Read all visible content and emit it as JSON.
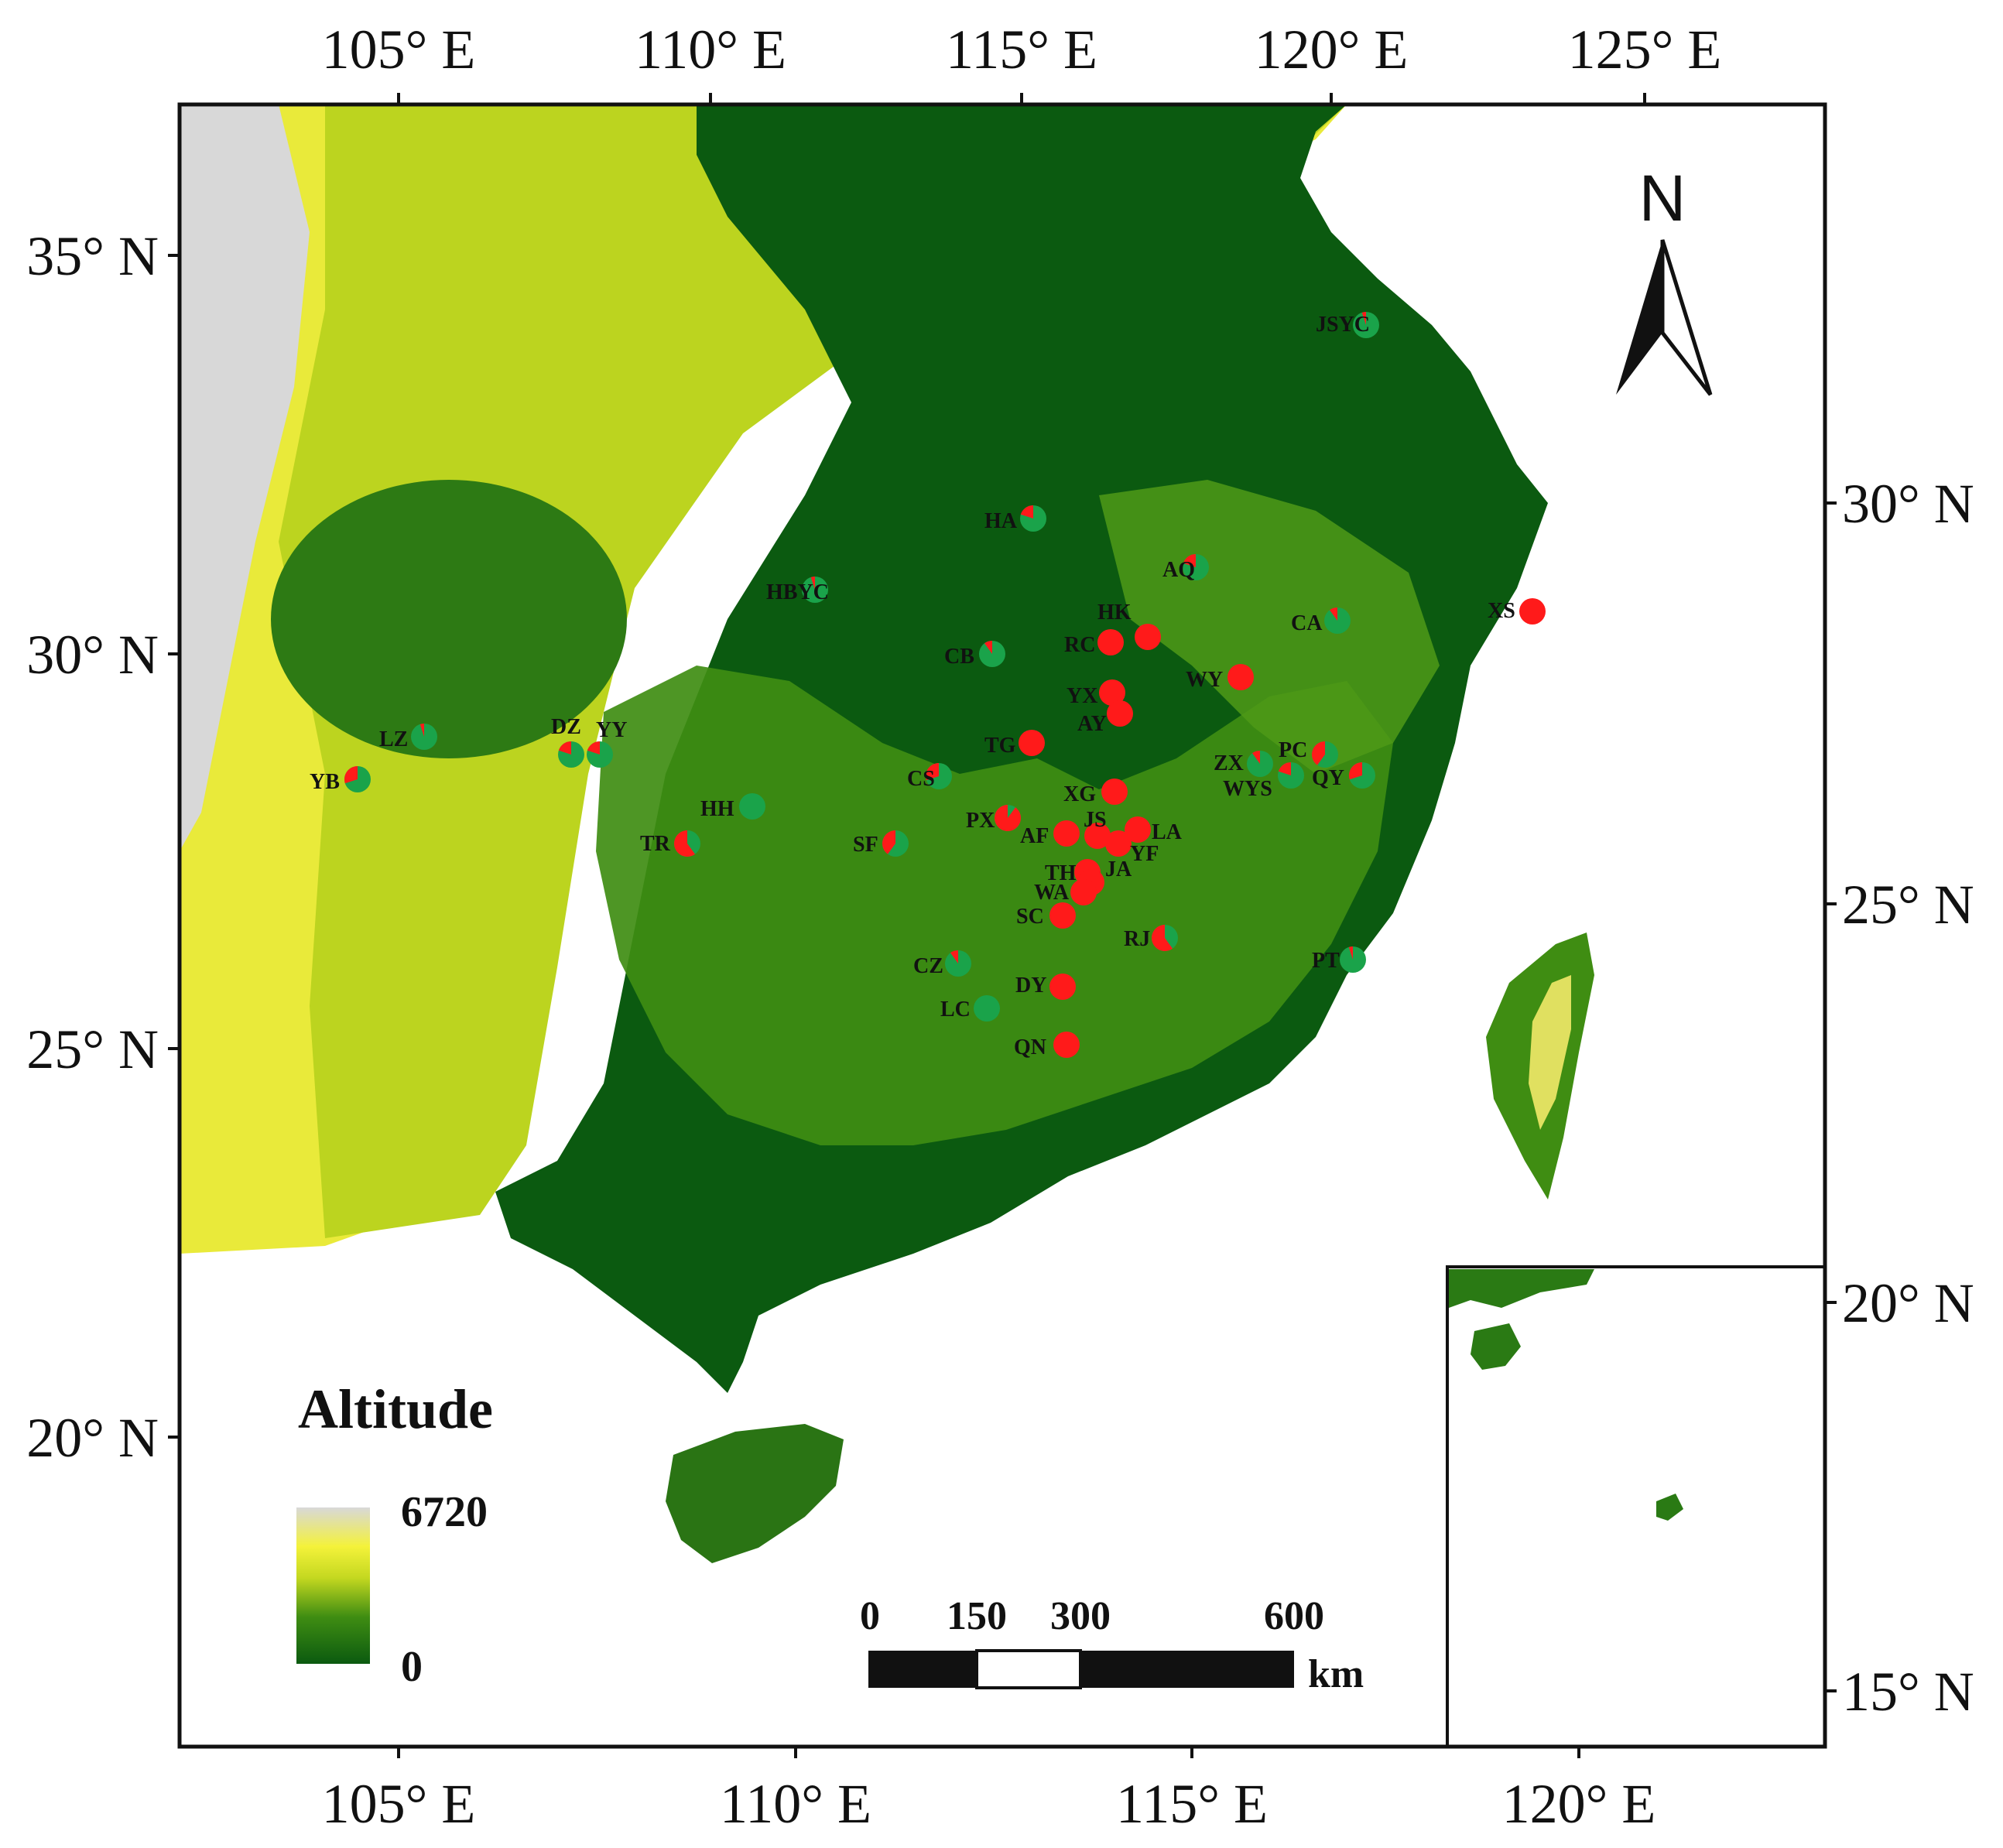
{
  "map": {
    "lon_labels_top": [
      "105° E",
      "110° E",
      "115° E",
      "120° E",
      "125° E"
    ],
    "lon_labels_bottom": [
      "105° E",
      "110° E",
      "115° E",
      "120° E"
    ],
    "lat_labels_left": [
      "35° N",
      "30° N",
      "25° N",
      "20° N"
    ],
    "lat_labels_right": [
      "30° N",
      "25° N",
      "20° N",
      "15° N"
    ],
    "colors": {
      "lowland": "#0b5a10",
      "mid": "#3f8d12",
      "upland": "#c4d820",
      "high": "#f4f23a",
      "peak": "#d8d8d8",
      "sea": "#ffffff",
      "marker_red": "#ff1a1a",
      "marker_green": "#1aa34a"
    }
  },
  "legend": {
    "title": "Altitude",
    "max_label": "6720",
    "min_label": "0"
  },
  "scalebar": {
    "ticks": [
      "0",
      "150",
      "300",
      "600"
    ],
    "unit": "km"
  },
  "north_arrow": {
    "label": "N"
  },
  "sites": [
    {
      "label": "JSYC",
      "red_fraction": 0.05
    },
    {
      "label": "HA",
      "red_fraction": 0.2
    },
    {
      "label": "AQ",
      "red_fraction": 0.2
    },
    {
      "label": "HBYC",
      "red_fraction": 0.05
    },
    {
      "label": "HK",
      "red_fraction": 1.0
    },
    {
      "label": "RC",
      "red_fraction": 1.0
    },
    {
      "label": "CA",
      "red_fraction": 0.1
    },
    {
      "label": "XS",
      "red_fraction": 1.0
    },
    {
      "label": "CB",
      "red_fraction": 0.1
    },
    {
      "label": "WY",
      "red_fraction": 1.0
    },
    {
      "label": "YX",
      "red_fraction": 1.0
    },
    {
      "label": "AY",
      "red_fraction": 1.0
    },
    {
      "label": "LZ",
      "red_fraction": 0.05
    },
    {
      "label": "DZ",
      "red_fraction": 0.2
    },
    {
      "label": "YY",
      "red_fraction": 0.2
    },
    {
      "label": "TG",
      "red_fraction": 1.0
    },
    {
      "label": "ZX",
      "red_fraction": 0.1
    },
    {
      "label": "PC",
      "red_fraction": 0.4
    },
    {
      "label": "WYS",
      "red_fraction": 0.2
    },
    {
      "label": "QY",
      "red_fraction": 0.3
    },
    {
      "label": "YB",
      "red_fraction": 0.3
    },
    {
      "label": "CS",
      "red_fraction": 0.3
    },
    {
      "label": "XG",
      "red_fraction": 1.0
    },
    {
      "label": "HH",
      "red_fraction": 0.0
    },
    {
      "label": "PX",
      "red_fraction": 0.9
    },
    {
      "label": "JS",
      "red_fraction": 1.0
    },
    {
      "label": "AF",
      "red_fraction": 1.0
    },
    {
      "label": "LA",
      "red_fraction": 1.0
    },
    {
      "label": "TR",
      "red_fraction": 0.6
    },
    {
      "label": "SF",
      "red_fraction": 0.4
    },
    {
      "label": "YF",
      "red_fraction": 1.0
    },
    {
      "label": "TH",
      "red_fraction": 1.0
    },
    {
      "label": "JA",
      "red_fraction": 1.0
    },
    {
      "label": "WA",
      "red_fraction": 1.0
    },
    {
      "label": "SC",
      "red_fraction": 1.0
    },
    {
      "label": "RJ",
      "red_fraction": 0.6
    },
    {
      "label": "CZ",
      "red_fraction": 0.1
    },
    {
      "label": "PT",
      "red_fraction": 0.05
    },
    {
      "label": "DY",
      "red_fraction": 1.0
    },
    {
      "label": "LC",
      "red_fraction": 0.0
    },
    {
      "label": "QN",
      "red_fraction": 1.0
    }
  ]
}
